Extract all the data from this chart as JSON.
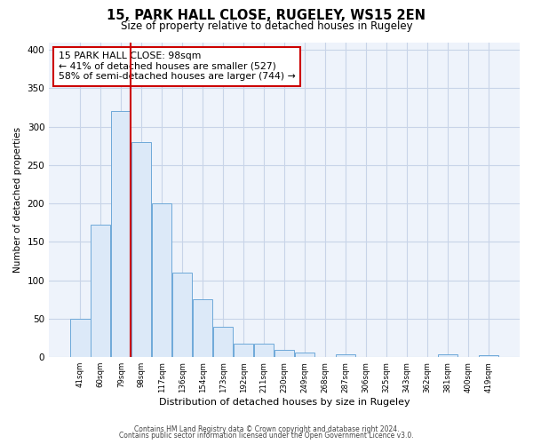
{
  "title": "15, PARK HALL CLOSE, RUGELEY, WS15 2EN",
  "subtitle": "Size of property relative to detached houses in Rugeley",
  "xlabel": "Distribution of detached houses by size in Rugeley",
  "ylabel": "Number of detached properties",
  "bar_labels": [
    "41sqm",
    "60sqm",
    "79sqm",
    "98sqm",
    "117sqm",
    "136sqm",
    "154sqm",
    "173sqm",
    "192sqm",
    "211sqm",
    "230sqm",
    "249sqm",
    "268sqm",
    "287sqm",
    "306sqm",
    "325sqm",
    "343sqm",
    "362sqm",
    "381sqm",
    "400sqm",
    "419sqm"
  ],
  "bar_values": [
    50,
    172,
    320,
    280,
    200,
    110,
    75,
    39,
    18,
    18,
    10,
    6,
    0,
    4,
    0,
    0,
    0,
    0,
    4,
    0,
    3
  ],
  "bar_color": "#dce9f8",
  "bar_edge_color": "#6ea8d8",
  "vline_color": "#cc0000",
  "annotation_box_text": "15 PARK HALL CLOSE: 98sqm\n← 41% of detached houses are smaller (527)\n58% of semi-detached houses are larger (744) →",
  "ylim": [
    0,
    410
  ],
  "yticks": [
    0,
    50,
    100,
    150,
    200,
    250,
    300,
    350,
    400
  ],
  "footer1": "Contains HM Land Registry data © Crown copyright and database right 2024.",
  "footer2": "Contains public sector information licensed under the Open Government Licence v3.0.",
  "background_color": "#ffffff",
  "plot_bg_color": "#eef3fb",
  "grid_color": "#c8d4e8"
}
